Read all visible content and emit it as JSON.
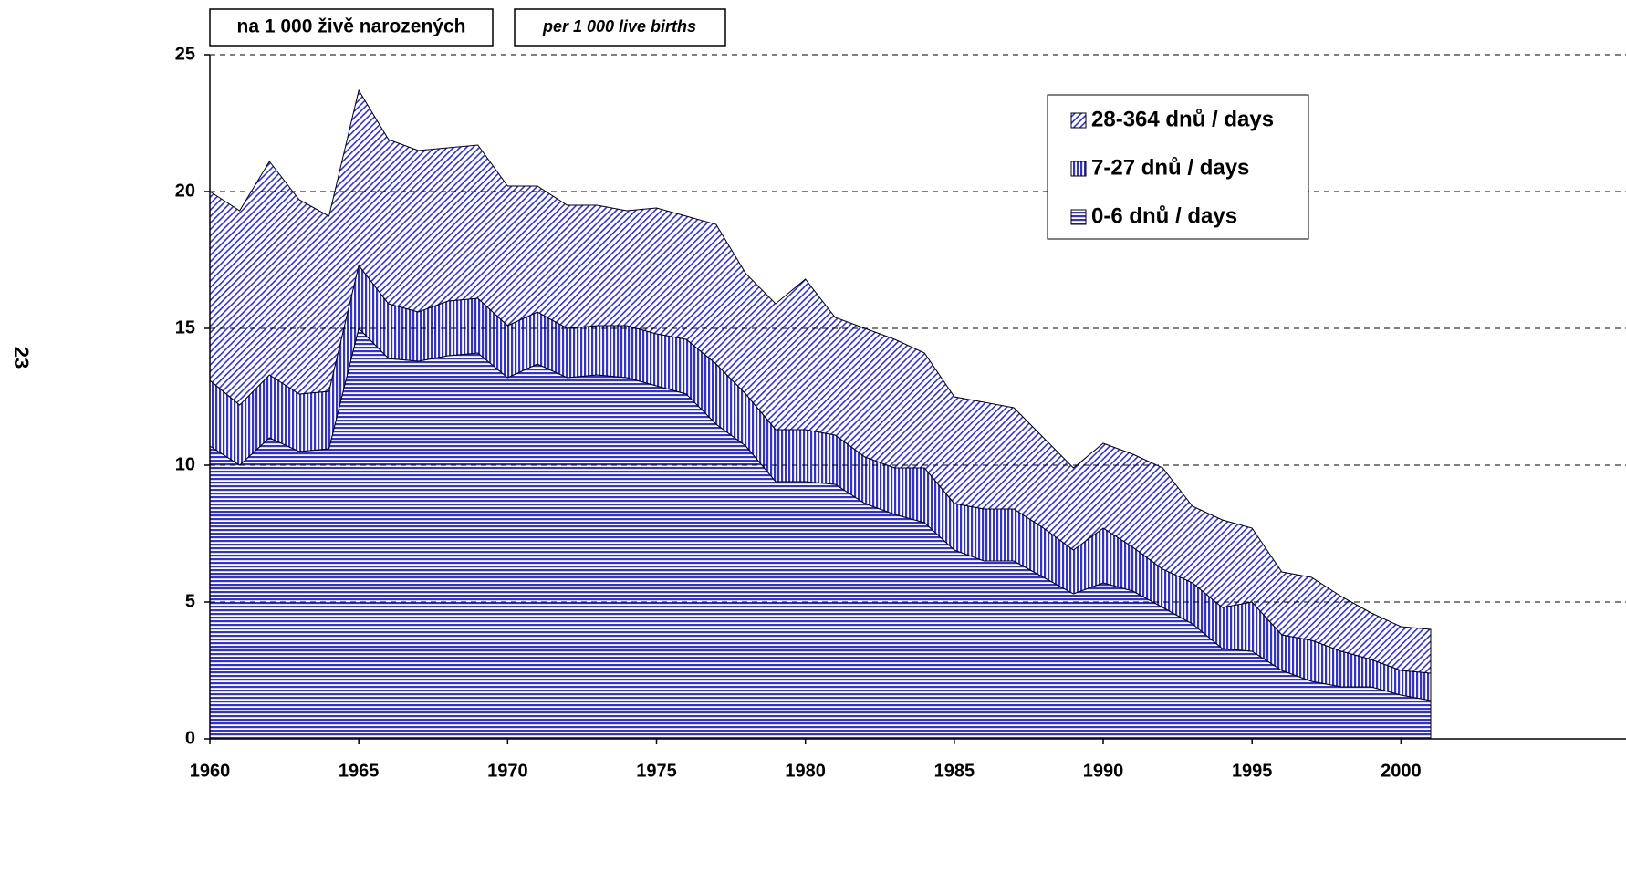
{
  "page_number": "23",
  "chart_data": {
    "type": "stacked_area",
    "units_cz": "na 1 000 živě narozených",
    "units_en": "per 1 000 live births",
    "x": [
      1960,
      1961,
      1962,
      1963,
      1964,
      1965,
      1966,
      1967,
      1968,
      1969,
      1970,
      1971,
      1972,
      1973,
      1974,
      1975,
      1976,
      1977,
      1978,
      1979,
      1980,
      1981,
      1982,
      1983,
      1984,
      1985,
      1986,
      1987,
      1988,
      1989,
      1990,
      1991,
      1992,
      1993,
      1994,
      1995,
      1996,
      1997,
      1998,
      1999,
      2000,
      2001
    ],
    "series": [
      {
        "name": "0-6 dnů / days",
        "color": "#3333cc",
        "pattern": "horizontal",
        "values": [
          10.7,
          10.0,
          11.0,
          10.5,
          10.6,
          15.0,
          13.9,
          13.8,
          14.0,
          14.1,
          13.2,
          13.7,
          13.2,
          13.3,
          13.2,
          12.9,
          12.6,
          11.5,
          10.7,
          9.4,
          9.4,
          9.3,
          8.6,
          8.2,
          7.9,
          6.9,
          6.5,
          6.5,
          5.9,
          5.3,
          5.7,
          5.4,
          4.8,
          4.2,
          3.3,
          3.2,
          2.5,
          2.1,
          1.9,
          1.9,
          1.6,
          1.4
        ]
      },
      {
        "name": "7-27 dnů / days",
        "color": "#3333cc",
        "pattern": "vertical",
        "values": [
          2.4,
          2.2,
          2.3,
          2.1,
          2.1,
          2.3,
          2.0,
          1.8,
          2.0,
          2.0,
          1.9,
          1.9,
          1.8,
          1.8,
          1.9,
          1.9,
          2.0,
          2.2,
          1.9,
          1.9,
          1.9,
          1.8,
          1.7,
          1.7,
          2.0,
          1.7,
          1.9,
          1.9,
          1.8,
          1.6,
          2.0,
          1.6,
          1.4,
          1.5,
          1.5,
          1.8,
          1.3,
          1.5,
          1.3,
          1.0,
          0.9,
          1.0
        ]
      },
      {
        "name": "28-364 dnů / days",
        "color": "#3333cc",
        "pattern": "diagonal",
        "values": [
          6.9,
          7.1,
          7.8,
          7.1,
          6.4,
          6.4,
          6.0,
          5.9,
          5.6,
          5.6,
          5.1,
          4.6,
          4.5,
          4.4,
          4.2,
          4.6,
          4.5,
          5.1,
          4.4,
          4.6,
          5.5,
          4.3,
          4.7,
          4.7,
          4.2,
          3.9,
          3.9,
          3.7,
          3.3,
          3.0,
          3.1,
          3.4,
          3.7,
          2.8,
          3.2,
          2.7,
          2.3,
          2.3,
          2.0,
          1.7,
          1.6,
          1.6
        ]
      }
    ],
    "xlim": [
      1960,
      2001
    ],
    "xticks": [
      1960,
      1965,
      1970,
      1975,
      1980,
      1985,
      1990,
      1995,
      2000
    ],
    "ylim": [
      0,
      25
    ],
    "yticks": [
      0,
      5,
      10,
      15,
      20,
      25
    ],
    "grid": true,
    "legend": "upper right"
  }
}
